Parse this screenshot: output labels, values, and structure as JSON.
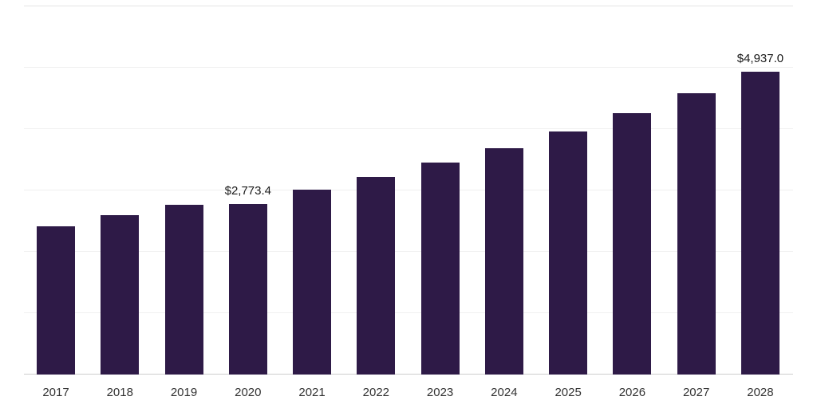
{
  "chart_data": {
    "type": "bar",
    "title": "",
    "xlabel": "",
    "ylabel": "",
    "categories": [
      "2017",
      "2018",
      "2019",
      "2020",
      "2021",
      "2022",
      "2023",
      "2024",
      "2025",
      "2026",
      "2027",
      "2028"
    ],
    "values": [
      2420,
      2600,
      2760,
      2773.4,
      3010,
      3220,
      3450,
      3695,
      3960,
      4255,
      4590,
      4937
    ],
    "data_labels": [
      "",
      "",
      "",
      "$2,773.4",
      "",
      "",
      "",
      "",
      "",
      "",
      "",
      "$4,937.0"
    ],
    "ylim": [
      0,
      6000
    ],
    "gridline_interval": 1000,
    "grid": true,
    "legend": false
  },
  "colors": {
    "bar": "#2e1a47",
    "gridline": "#f0f0f0",
    "top_line": "#e4e4e4",
    "baseline": "#cccccc",
    "value_label_text": "#1a1a1a",
    "axis_label_text": "#333333",
    "background": "#ffffff"
  }
}
